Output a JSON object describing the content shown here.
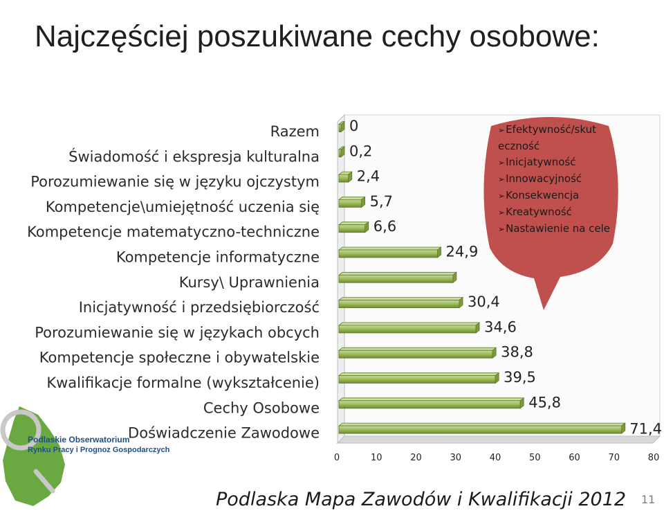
{
  "slide": {
    "title": "Najczęściej poszukiwane cechy osobowe:",
    "footer": "Podlaska Mapa Zawodów i Kwalifikacji 2012",
    "page_number": "11"
  },
  "logo": {
    "line1": "Podlaskie Obserwatorium",
    "line2": "Rynku Pracy i Prognoz Gospodarczych"
  },
  "callout": {
    "items": [
      "Efektywność/skut eczność",
      "Inicjatywność",
      "Innowacyjność",
      "Konsekwencja",
      "Kreatywność",
      "Nastawienie na cele"
    ],
    "fill": "#c0504d"
  },
  "chart_data": {
    "type": "bar",
    "orientation": "horizontal",
    "categories": [
      "Razem",
      "Świadomość i ekspresja kulturalna",
      "Porozumiewanie się w języku ojczystym",
      "Kompetencje\\umiejętność uczenia się",
      "Kompetencje matematyczno-techniczne",
      "Kompetencje informatyczne",
      "Kursy\\ Uprawnienia",
      "Inicjatywność i przedsiębiorczość",
      "Porozumiewanie się w językach obcych",
      "Kompetencje społeczne i obywatelskie",
      "Kwalifikacje formalne (wykształcenie)",
      "Cechy Osobowe",
      "Doświadczenie Zawodowe"
    ],
    "values": [
      0,
      0.2,
      2.4,
      5.7,
      6.6,
      24.9,
      28.8,
      30.4,
      34.6,
      38.8,
      39.5,
      45.8,
      71.4
    ],
    "value_labels": [
      "0",
      "0,2",
      "2,4",
      "5,7",
      "6,6",
      "24,9",
      "",
      "30,4",
      "34,6",
      "38,8",
      "39,5",
      "45,8",
      "71,4"
    ],
    "xlim": [
      0,
      80
    ],
    "xticks": [
      0,
      10,
      20,
      30,
      40,
      50,
      60,
      70,
      80
    ],
    "bar_color": "#9bbb59",
    "grid": false
  }
}
